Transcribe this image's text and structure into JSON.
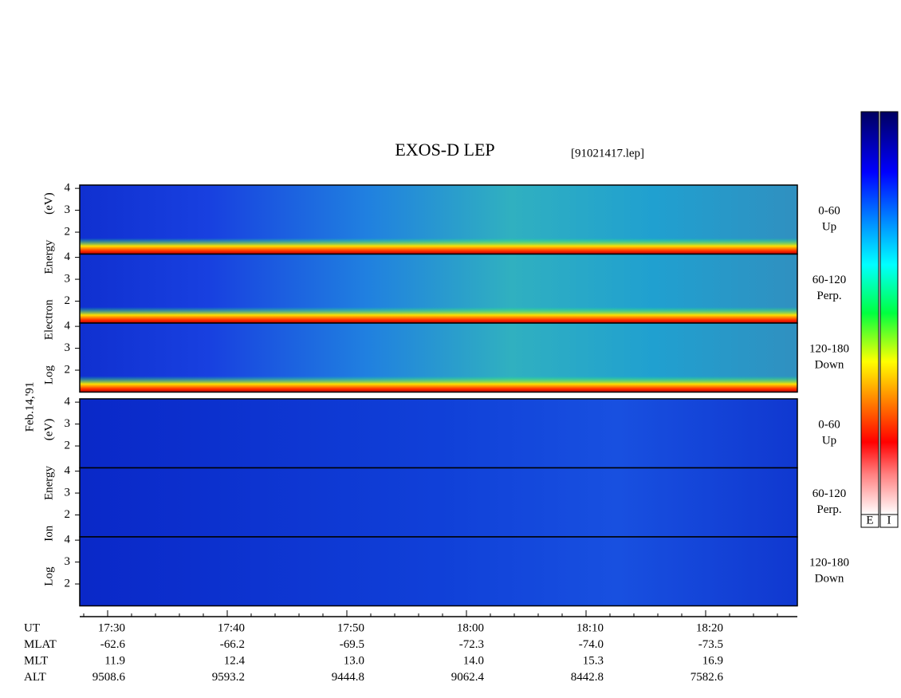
{
  "title": "EXOS-D LEP",
  "file": "[91021417.lep]",
  "date": "Feb.14,'91",
  "colorbars": [
    "E",
    "I"
  ],
  "chart_data": {
    "type": "spectrogram",
    "xlim": [
      1047.667,
      1107.667
    ],
    "xticks": [
      {
        "value": 1050,
        "label": "17:30"
      },
      {
        "value": 1060,
        "label": "17:40"
      },
      {
        "value": 1070,
        "label": "17:50"
      },
      {
        "value": 1080,
        "label": "18:00"
      },
      {
        "value": 1090,
        "label": "18:10"
      },
      {
        "value": 1100,
        "label": "18:20"
      }
    ],
    "xminorticks": [
      1048,
      1052,
      1054,
      1056,
      1058,
      1062,
      1064,
      1066,
      1068,
      1072,
      1074,
      1076,
      1078,
      1082,
      1084,
      1086,
      1088,
      1092,
      1094,
      1096,
      1098,
      1102,
      1104,
      1106
    ],
    "ylim": [
      1,
      4.15
    ],
    "yticks": [
      2,
      3,
      4
    ],
    "groups": [
      {
        "ylabel": "Log Electron Energy (eV)",
        "species": "electron",
        "panels": [
          {
            "label": "0-60",
            "sublabel": "Up"
          },
          {
            "label": "60-120",
            "sublabel": "Perp."
          },
          {
            "label": "120-180",
            "sublabel": "Down"
          }
        ]
      },
      {
        "ylabel": "Log Ion Energy (eV)",
        "species": "ion",
        "panels": [
          {
            "label": "0-60",
            "sublabel": "Up"
          },
          {
            "label": "60-120",
            "sublabel": "Perp."
          },
          {
            "label": "120-180",
            "sublabel": "Down"
          }
        ]
      }
    ],
    "ephemeris": [
      {
        "name": "UT"
      },
      {
        "name": "MLAT",
        "values": [
          "-62.6",
          "-66.2",
          "-69.5",
          "-72.3",
          "-74.0",
          "-73.5"
        ]
      },
      {
        "name": "MLT",
        "values": [
          "11.9",
          "12.4",
          "13.0",
          "14.0",
          "15.3",
          "16.9"
        ]
      },
      {
        "name": "ALT",
        "values": [
          "9508.6",
          "9593.2",
          "9444.8",
          "9062.4",
          "8442.8",
          "7582.6"
        ]
      }
    ]
  }
}
